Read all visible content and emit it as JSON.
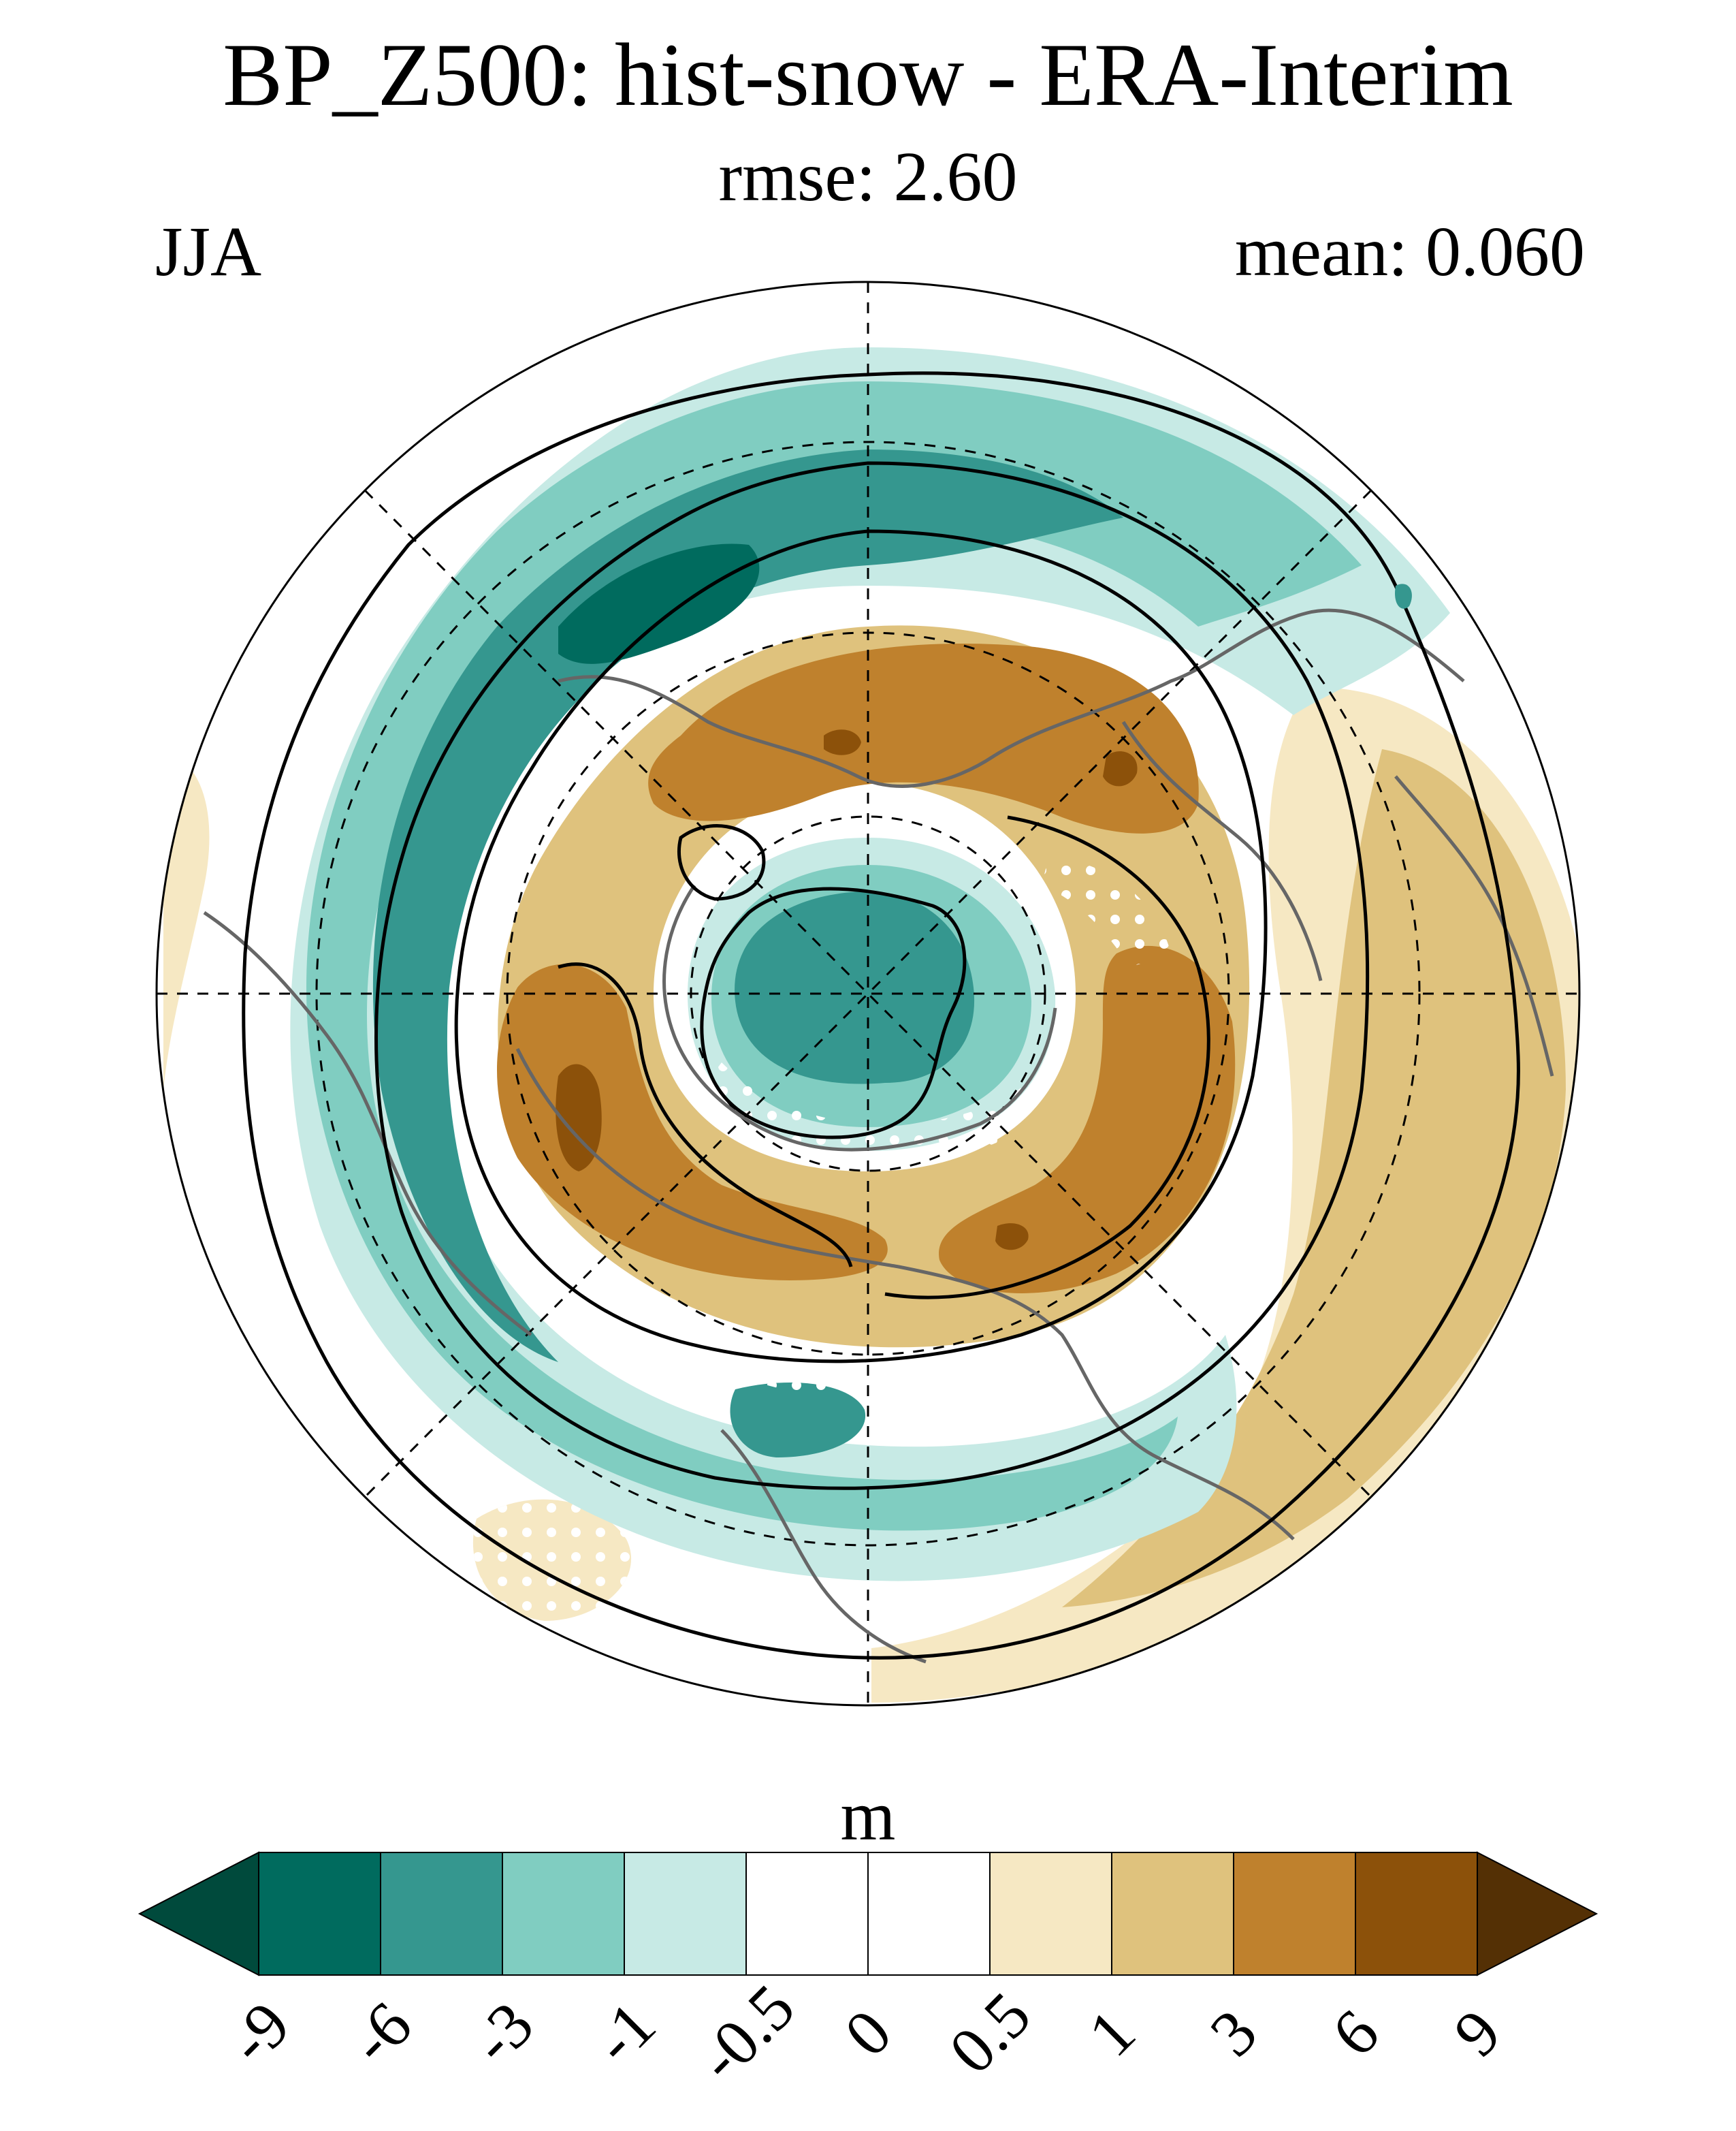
{
  "figure": {
    "title": "BP_Z500: hist-snow - ERA-Interim",
    "subtitle": "rmse: 2.60",
    "season": "JJA",
    "mean_label": "mean: 0.060"
  },
  "map": {
    "projection": "north-polar-stereographic",
    "variable": "Z500 difference",
    "features": [
      "coastlines",
      "latitude-circles",
      "meridians",
      "contours",
      "stippling"
    ]
  },
  "colorbar": {
    "units": "m",
    "ticks": [
      "-9",
      "-6",
      "-3",
      "-1",
      "-0.5",
      "0",
      "0.5",
      "1",
      "3",
      "6",
      "9"
    ],
    "colors": [
      "#004a3c",
      "#006b5e",
      "#35978f",
      "#80cdc1",
      "#c7eae5",
      "#ffffff",
      "#ffffff",
      "#f6e8c3",
      "#dfc27d",
      "#bf812d",
      "#8c510a",
      "#543005"
    ]
  }
}
